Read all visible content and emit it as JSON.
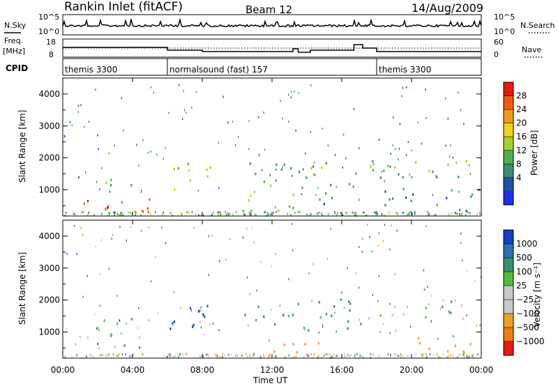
{
  "header": {
    "station": "Rankin Inlet (fitACF)",
    "beam": "Beam 12",
    "date": "14/Aug/2009"
  },
  "noise_panel": {
    "left_label": "N.Sky",
    "left_ticks": [
      "10^5",
      "10^0"
    ],
    "right_label": "N.Search",
    "right_ticks": [
      "10^5",
      "10^0"
    ]
  },
  "freq_panel": {
    "left_label_line1": "Freq.",
    "left_label_line2": "[MHz]",
    "left_ticks": [
      "18",
      "8"
    ],
    "right_label": "Nave",
    "right_ticks": [
      "60",
      "0"
    ]
  },
  "cpid_panel": {
    "label": "CPID",
    "segments": [
      {
        "name": "themis 3300",
        "start_hour": 0,
        "end_hour": 6
      },
      {
        "name": "normalsound (fast) 157",
        "start_hour": 6,
        "end_hour": 18
      },
      {
        "name": "themis 3300",
        "start_hour": 18,
        "end_hour": 24
      }
    ]
  },
  "colors": {
    "power_scale": [
      "#1e2ef0",
      "#1f4fae",
      "#3f8e6e",
      "#4fb04a",
      "#a9cf2d",
      "#f0d21a",
      "#f39a14",
      "#f05a12",
      "#e81a14"
    ],
    "velocity_scale": [
      "#1440c8",
      "#2f6fb0",
      "#3f8e6e",
      "#4fbf3a",
      "#c8c8c8",
      "#c8c8c8",
      "#f0a020",
      "#f07a10",
      "#e81a14"
    ]
  },
  "chart_data": [
    {
      "type": "heatmap",
      "name": "power",
      "xlabel": "Time UT",
      "ylabel": "Slant Range [km]",
      "x_range_hours": [
        0,
        24
      ],
      "xticks": [
        "00:00",
        "04:00",
        "08:00",
        "12:00",
        "16:00",
        "20:00",
        "00:00"
      ],
      "ylim": [
        180,
        4500
      ],
      "yticks": [
        1000,
        2000,
        3000,
        4000
      ],
      "colorbar_label": "Power [dB]",
      "colorbar_ticks": [
        4,
        8,
        12,
        16,
        20,
        24,
        28
      ],
      "colorbar_range": [
        0,
        30
      ],
      "echo_regions": [
        {
          "t0": 0.8,
          "t1": 5.2,
          "r0": 250,
          "r1": 800,
          "level": 24
        },
        {
          "t0": 2.2,
          "t1": 3.2,
          "r0": 250,
          "r1": 700,
          "level": 28
        },
        {
          "t0": 0.6,
          "t1": 3.0,
          "r0": 950,
          "r1": 1400,
          "level": 10
        },
        {
          "t0": 3.8,
          "t1": 4.8,
          "r0": 1100,
          "r1": 1300,
          "level": 12
        },
        {
          "t0": 6.0,
          "t1": 7.6,
          "r0": 950,
          "r1": 2000,
          "level": 14
        },
        {
          "t0": 7.6,
          "t1": 8.5,
          "r0": 950,
          "r1": 1800,
          "level": 12
        },
        {
          "t0": 8.5,
          "t1": 9.2,
          "r0": 180,
          "r1": 500,
          "level": 8
        },
        {
          "t0": 10.3,
          "t1": 17.2,
          "r0": 1000,
          "r1": 1900,
          "level": 12
        },
        {
          "t0": 10.3,
          "t1": 14.2,
          "r0": 300,
          "r1": 900,
          "level": 14
        },
        {
          "t0": 14.0,
          "t1": 17.5,
          "r0": 500,
          "r1": 900,
          "level": 10
        },
        {
          "t0": 17.5,
          "t1": 23.5,
          "r0": 1200,
          "r1": 2050,
          "level": 12
        },
        {
          "t0": 18.0,
          "t1": 24.0,
          "r0": 300,
          "r1": 1000,
          "level": 8
        },
        {
          "t0": 23.5,
          "t1": 24.0,
          "r0": 300,
          "r1": 550,
          "level": 28
        }
      ]
    },
    {
      "type": "heatmap",
      "name": "velocity",
      "xlabel": "Time UT",
      "ylabel": "Slant Range [km]",
      "x_range_hours": [
        0,
        24
      ],
      "xticks": [
        "00:00",
        "04:00",
        "08:00",
        "12:00",
        "16:00",
        "20:00",
        "00:00"
      ],
      "ylim": [
        180,
        4500
      ],
      "yticks": [
        1000,
        2000,
        3000,
        4000
      ],
      "colorbar_label": "Velocity [m s⁻¹]",
      "colorbar_ticks": [
        "1000",
        "500",
        "100",
        "25",
        "−25",
        "−100",
        "−500",
        "−1000"
      ],
      "echo_regions": [
        {
          "t0": 0.6,
          "t1": 5.2,
          "r0": 250,
          "r1": 1400,
          "level": 0
        },
        {
          "t0": 6.0,
          "t1": 8.5,
          "r0": 950,
          "r1": 2000,
          "level": 900
        },
        {
          "t0": 10.3,
          "t1": 17.2,
          "r0": 1000,
          "r1": 2000,
          "level": 60
        },
        {
          "t0": 11.5,
          "t1": 15.0,
          "r0": 200,
          "r1": 800,
          "level": -300
        },
        {
          "t0": 17.5,
          "t1": 23.5,
          "r0": 1300,
          "r1": 2050,
          "level": 0
        },
        {
          "t0": 20.0,
          "t1": 24.0,
          "r0": 300,
          "r1": 900,
          "level": -300
        }
      ]
    }
  ]
}
